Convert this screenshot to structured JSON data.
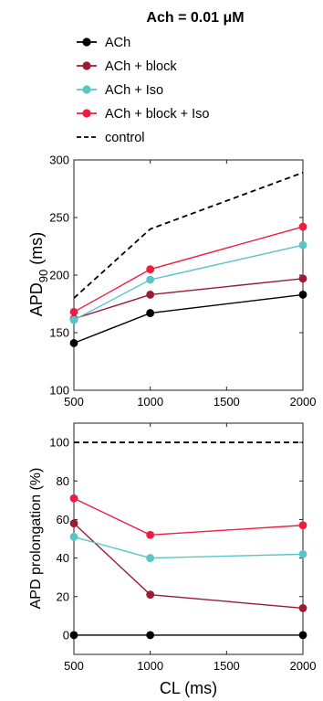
{
  "figure_title": "Ach = 0.01 μM",
  "colors": {
    "ach": "#000000",
    "block": "#9a1b33",
    "iso": "#5bc4c8",
    "block_iso": "#ee1d3f",
    "control": "#000000"
  },
  "legend": [
    {
      "label": "ACh",
      "color_key": "ach",
      "style": "solid-marker"
    },
    {
      "label": "ACh + block",
      "color_key": "block",
      "style": "solid-marker"
    },
    {
      "label": "ACh + Iso",
      "color_key": "iso",
      "style": "solid-marker"
    },
    {
      "label": "ACh + block + Iso",
      "color_key": "block_iso",
      "style": "solid-marker"
    },
    {
      "label": "control",
      "color_key": "control",
      "style": "dashed"
    }
  ],
  "chart_data": [
    {
      "type": "line",
      "title": "",
      "ylabel_main": "APD",
      "ylabel_sub": "90",
      "ylabel_unit": " (ms)",
      "xlabel": "",
      "x": [
        500,
        1000,
        2000
      ],
      "xlim": [
        500,
        2000
      ],
      "ylim": [
        100,
        300
      ],
      "xticks": [
        500,
        1000,
        1500,
        2000
      ],
      "yticks": [
        100,
        150,
        200,
        250,
        300
      ],
      "series": [
        {
          "name": "control",
          "color_key": "control",
          "dashed": true,
          "markers": false,
          "values": [
            180,
            240,
            289
          ]
        },
        {
          "name": "ACh",
          "color_key": "ach",
          "dashed": false,
          "markers": true,
          "values": [
            141,
            167,
            183
          ]
        },
        {
          "name": "ACh + block",
          "color_key": "block",
          "dashed": false,
          "markers": true,
          "values": [
            162,
            183,
            197
          ]
        },
        {
          "name": "ACh + Iso",
          "color_key": "iso",
          "dashed": false,
          "markers": true,
          "values": [
            161,
            196,
            226
          ]
        },
        {
          "name": "ACh + block + Iso",
          "color_key": "block_iso",
          "dashed": false,
          "markers": true,
          "values": [
            168,
            205,
            242
          ]
        }
      ]
    },
    {
      "type": "line",
      "title": "",
      "ylabel_main": "APD prolongation (%)",
      "ylabel_sub": "",
      "ylabel_unit": "",
      "xlabel": "CL (ms)",
      "x": [
        500,
        1000,
        2000
      ],
      "xlim": [
        500,
        2000
      ],
      "ylim": [
        -10,
        110
      ],
      "xticks": [
        500,
        1000,
        1500,
        2000
      ],
      "yticks": [
        0,
        20,
        40,
        60,
        80,
        100
      ],
      "series": [
        {
          "name": "control",
          "color_key": "control",
          "dashed": true,
          "markers": false,
          "values": [
            100,
            100,
            100
          ]
        },
        {
          "name": "ACh",
          "color_key": "ach",
          "dashed": false,
          "markers": true,
          "values": [
            0,
            0,
            0
          ]
        },
        {
          "name": "ACh + block",
          "color_key": "block",
          "dashed": false,
          "markers": true,
          "values": [
            58,
            21,
            14
          ]
        },
        {
          "name": "ACh + Iso",
          "color_key": "iso",
          "dashed": false,
          "markers": true,
          "values": [
            51,
            40,
            42
          ]
        },
        {
          "name": "ACh + block + Iso",
          "color_key": "block_iso",
          "dashed": false,
          "markers": true,
          "values": [
            71,
            52,
            57
          ]
        }
      ]
    }
  ]
}
